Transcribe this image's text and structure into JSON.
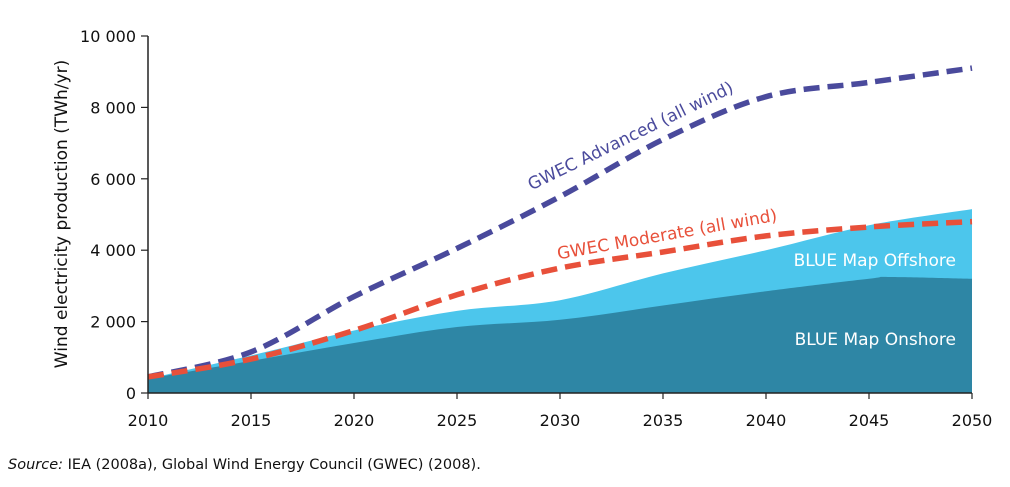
{
  "chart_data": {
    "type": "area",
    "ylabel": "Wind electricity production (TWh/yr)",
    "xlim": [
      2010,
      2050
    ],
    "ylim": [
      0,
      10000
    ],
    "x_ticks": [
      2010,
      2015,
      2020,
      2025,
      2030,
      2035,
      2040,
      2045,
      2050
    ],
    "x_tick_labels": [
      "2010",
      "2015",
      "2020",
      "2025",
      "2030",
      "2035",
      "2040",
      "2045",
      "2050"
    ],
    "y_ticks": [
      0,
      2000,
      4000,
      6000,
      8000,
      10000
    ],
    "y_tick_labels": [
      "0",
      "2 000",
      "4 000",
      "6 000",
      "8 000",
      "10 000"
    ],
    "grid": false,
    "areas": [
      {
        "name": "BLUE Map Onshore",
        "color": "#2E86A5",
        "points": [
          [
            2010,
            400
          ],
          [
            2015,
            900
          ],
          [
            2020,
            1400
          ],
          [
            2025,
            1850
          ],
          [
            2030,
            2050
          ],
          [
            2035,
            2450
          ],
          [
            2040,
            2850
          ],
          [
            2045,
            3200
          ],
          [
            2046,
            3250
          ],
          [
            2050,
            3200
          ]
        ]
      },
      {
        "name": "BLUE Map Offshore",
        "color": "#4CC6EC",
        "points": [
          [
            2010,
            400
          ],
          [
            2015,
            1050
          ],
          [
            2020,
            1750
          ],
          [
            2025,
            2300
          ],
          [
            2030,
            2600
          ],
          [
            2035,
            3350
          ],
          [
            2040,
            4000
          ],
          [
            2045,
            4700
          ],
          [
            2050,
            5150
          ]
        ]
      }
    ],
    "lines": [
      {
        "name": "GWEC Advanced (all wind)",
        "color": "#4A4A9C",
        "style": "dashed",
        "points": [
          [
            2010,
            450
          ],
          [
            2015,
            1150
          ],
          [
            2020,
            2700
          ],
          [
            2025,
            4050
          ],
          [
            2030,
            5500
          ],
          [
            2035,
            7100
          ],
          [
            2040,
            8300
          ],
          [
            2045,
            8700
          ],
          [
            2050,
            9100
          ]
        ]
      },
      {
        "name": "GWEC Moderate (all wind)",
        "color": "#E8503A",
        "style": "dashed",
        "points": [
          [
            2010,
            450
          ],
          [
            2015,
            950
          ],
          [
            2020,
            1750
          ],
          [
            2025,
            2750
          ],
          [
            2030,
            3500
          ],
          [
            2035,
            3950
          ],
          [
            2040,
            4400
          ],
          [
            2045,
            4650
          ],
          [
            2050,
            4800
          ]
        ]
      }
    ]
  },
  "source_note": {
    "prefix": "Source:",
    "text": " IEA (2008a), Global Wind Energy Council (GWEC) (2008)."
  }
}
